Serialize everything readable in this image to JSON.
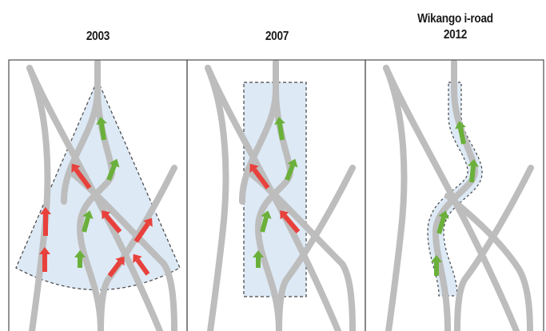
{
  "panels": [
    {
      "heading": "2003",
      "subheading": ""
    },
    {
      "heading": "2007",
      "subheading": ""
    },
    {
      "heading": "Wikango i-road",
      "subheading": "2012"
    }
  ],
  "colors": {
    "road": "#bdbdbd",
    "zone_fill": "#dde9f5",
    "zone_border": "#444444",
    "arrow_ahead": "#6ab03a",
    "arrow_other": "#e8413c",
    "panel_border": "#4d4d4d"
  },
  "legend_meaning": {
    "arrow_ahead": "green-arrow-icon",
    "arrow_other": "red-arrow-icon"
  }
}
